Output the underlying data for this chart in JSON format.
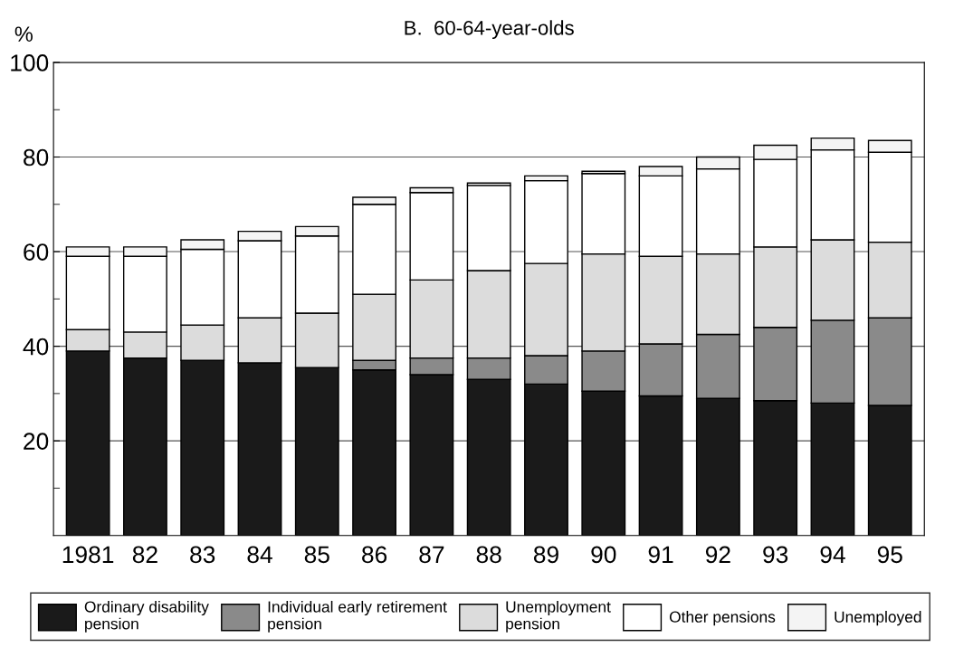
{
  "chart_data": {
    "type": "bar",
    "stacked": true,
    "title": "B.  60-64-year-olds",
    "ylabel": "%",
    "categories": [
      "1981",
      "82",
      "83",
      "84",
      "85",
      "86",
      "87",
      "88",
      "89",
      "90",
      "91",
      "92",
      "93",
      "94",
      "95"
    ],
    "series": [
      {
        "name": "Ordinary disability pension",
        "color": "#1a1a1a",
        "values": [
          39,
          37.5,
          37,
          36.5,
          35.5,
          35,
          34,
          33,
          32,
          30.5,
          29.5,
          29,
          28.5,
          28,
          27.5
        ]
      },
      {
        "name": "Individual early retirement pension",
        "color": "#8a8a8a",
        "values": [
          null,
          null,
          null,
          null,
          null,
          2,
          3.5,
          4.5,
          6,
          8.5,
          11,
          13.5,
          15.5,
          17.5,
          18.5
        ]
      },
      {
        "name": "Unemployment pension",
        "color": "#dcdcdc",
        "values": [
          4.5,
          5.5,
          7.5,
          9.5,
          11.5,
          14,
          16.5,
          18.5,
          19.5,
          20.5,
          18.5,
          17,
          17,
          17,
          16
        ]
      },
      {
        "name": "Other pensions",
        "color": "#ffffff",
        "values": [
          15.5,
          16,
          16,
          16.3,
          16.3,
          19,
          18.5,
          18,
          17.5,
          17,
          17,
          18,
          18.5,
          19,
          19
        ]
      },
      {
        "name": "Unemployed",
        "color": "#f4f4f4",
        "values": [
          2,
          2,
          2,
          2,
          2,
          1.5,
          1,
          0.5,
          1,
          0.5,
          2,
          2.5,
          3,
          2.5,
          2.5
        ]
      }
    ],
    "ylim": [
      0,
      100
    ],
    "yticks": [
      {
        "value": 10,
        "label": null
      },
      20,
      {
        "value": 30,
        "label": null
      },
      40,
      {
        "value": 50,
        "label": null
      },
      60,
      {
        "value": 70,
        "label": null
      },
      80,
      {
        "value": 90,
        "label": null
      },
      100
    ],
    "grid": "y",
    "legend": "bottom"
  }
}
